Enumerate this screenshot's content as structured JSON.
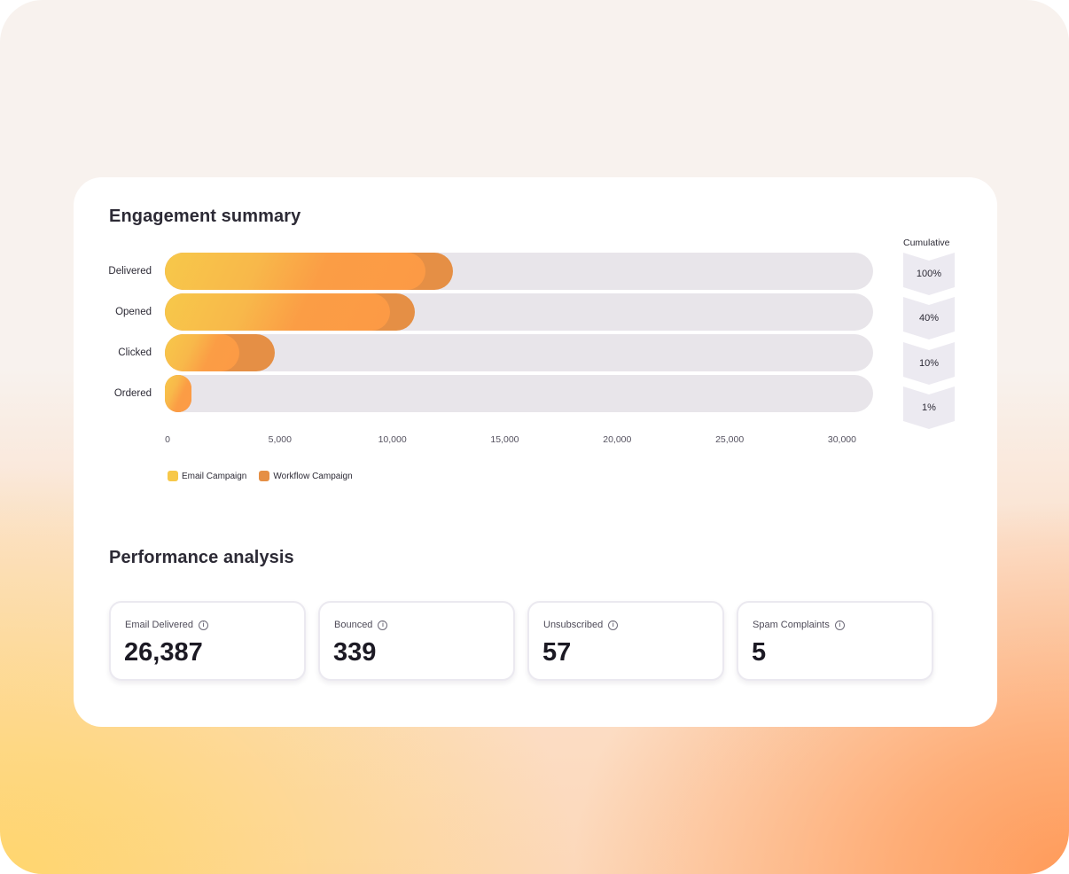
{
  "engagement": {
    "title": "Engagement summary",
    "cumulative_title": "Cumulative"
  },
  "chart_data": {
    "type": "bar",
    "orientation": "horizontal",
    "stacked": "overlay",
    "title": "Engagement summary",
    "categories": [
      "Delivered",
      "Opened",
      "Clicked",
      "Ordered"
    ],
    "xlim": [
      0,
      31500
    ],
    "x_ticks": [
      0,
      5000,
      10000,
      15000,
      20000,
      25000,
      30000
    ],
    "x_tick_labels": [
      "0",
      "5,000",
      "10,000",
      "15,000",
      "20,000",
      "25,000",
      "30,000"
    ],
    "grid": false,
    "legend": "bottom-left",
    "series": [
      {
        "name": "Email Campaign",
        "color": "#f7c84a",
        "values": [
          11600,
          10000,
          3300,
          900
        ]
      },
      {
        "name": "Workflow Campaign",
        "color": "#e58f45",
        "values": [
          12800,
          11100,
          4900,
          1200
        ]
      }
    ],
    "cumulative": [
      "100%",
      "40%",
      "10%",
      "1%"
    ]
  },
  "performance": {
    "title": "Performance analysis",
    "kpis": [
      {
        "label": "Email Delivered",
        "value": "26,387"
      },
      {
        "label": "Bounced",
        "value": "339"
      },
      {
        "label": "Unsubscribed",
        "value": "57"
      },
      {
        "label": "Spam Complaints",
        "value": "5"
      }
    ],
    "info_icon": "info-icon"
  },
  "colors": {
    "track": "#e8e5ea",
    "email": "#f7c84a",
    "workflow": "#e58f45",
    "text": "#2c2a35"
  }
}
